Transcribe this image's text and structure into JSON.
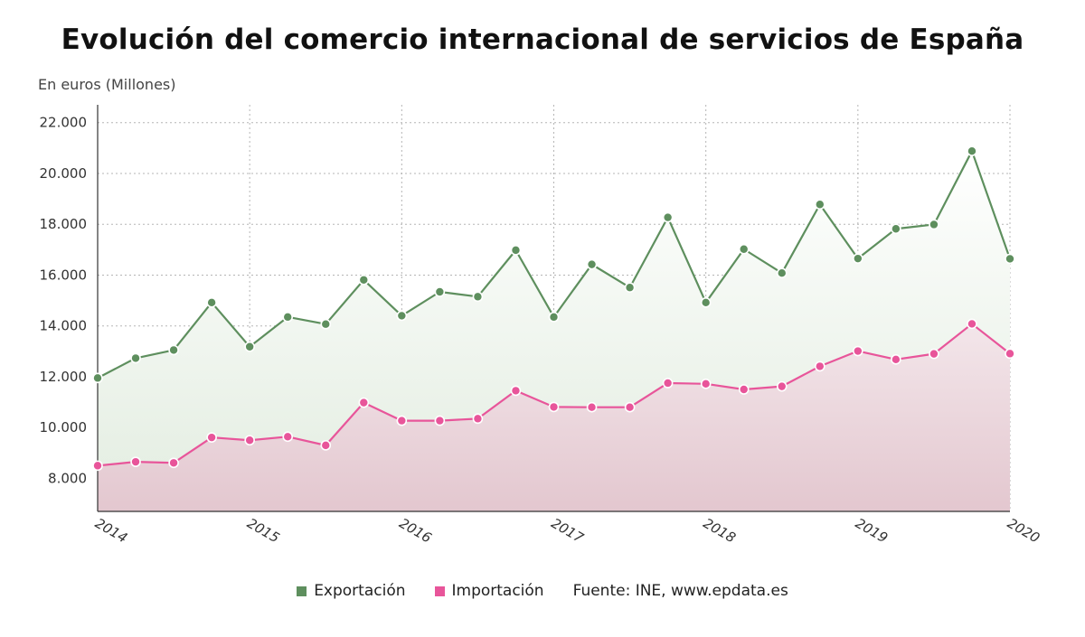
{
  "title": "Evolución del comercio internacional de servicios de España",
  "colors": {
    "export": "#5e8f5e",
    "import": "#e8559a",
    "export_fill": "#e6efe4",
    "import_fill": "#e3c7cf",
    "grid": "#b5b5b5"
  },
  "legend": {
    "export_label": "Exportación",
    "import_label": "Importación",
    "source": "Fuente: INE, www.epdata.es"
  },
  "chart_data": {
    "type": "area",
    "title": "Evolución del comercio internacional de servicios de España",
    "ylabel": "En euros (Millones)",
    "xlabel": "",
    "x_ticks": [
      "2014",
      "2015",
      "2016",
      "2017",
      "2018",
      "2019",
      "2020"
    ],
    "y_ticks": [
      8000,
      10000,
      12000,
      14000,
      16000,
      18000,
      20000,
      22000
    ],
    "y_tick_labels": [
      "8.000",
      "10.000",
      "12.000",
      "14.000",
      "16.000",
      "18.000",
      "20.000",
      "22.000"
    ],
    "ylim": [
      6700,
      22700
    ],
    "xlim": [
      2014,
      2020
    ],
    "grid": true,
    "legend_position": "bottom",
    "x": [
      "2014-T1",
      "2014-T2",
      "2014-T3",
      "2014-T4",
      "2015-T1",
      "2015-T2",
      "2015-T3",
      "2015-T4",
      "2016-T1",
      "2016-T2",
      "2016-T3",
      "2016-T4",
      "2017-T1",
      "2017-T2",
      "2017-T3",
      "2017-T4",
      "2018-T1",
      "2018-T2",
      "2018-T3",
      "2018-T4",
      "2019-T1",
      "2019-T2",
      "2019-T3",
      "2019-T4",
      "2020-T1"
    ],
    "series": [
      {
        "name": "Exportación",
        "values": [
          11950,
          12730,
          13050,
          14920,
          13180,
          14350,
          14070,
          15810,
          14400,
          15340,
          15150,
          16980,
          14350,
          16420,
          15510,
          18270,
          14920,
          17020,
          16080,
          18780,
          16650,
          17820,
          17990,
          20880,
          16640
        ]
      },
      {
        "name": "Importación",
        "values": [
          8500,
          8650,
          8610,
          9610,
          9500,
          9640,
          9300,
          10980,
          10270,
          10270,
          10350,
          11450,
          10810,
          10800,
          10800,
          11750,
          11720,
          11500,
          11620,
          12410,
          13010,
          12680,
          12900,
          14080,
          12910
        ]
      }
    ]
  }
}
